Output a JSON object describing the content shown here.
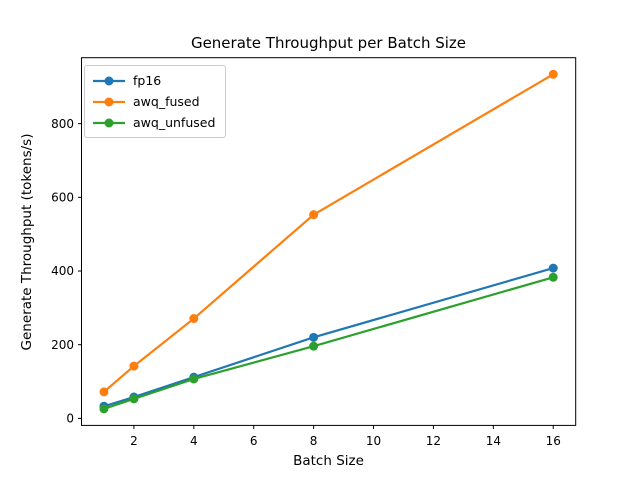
{
  "figure": {
    "background": "#ffffff"
  },
  "chart_data": {
    "type": "line",
    "title": "Generate Throughput per Batch Size",
    "xlabel": "Batch Size",
    "ylabel": "Generate Throughput (tokens/s)",
    "x": [
      1,
      2,
      4,
      8,
      16
    ],
    "series": [
      {
        "name": "fp16",
        "color": "#1f77b4",
        "values": [
          33,
          58,
          112,
          220,
          408
        ]
      },
      {
        "name": "awq_fused",
        "color": "#ff7f0e",
        "values": [
          72,
          142,
          271,
          553,
          934
        ]
      },
      {
        "name": "awq_unfused",
        "color": "#2ca02c",
        "values": [
          26,
          53,
          107,
          196,
          383
        ]
      }
    ],
    "xticks": [
      2,
      4,
      6,
      8,
      10,
      12,
      14,
      16
    ],
    "yticks": [
      0,
      200,
      400,
      600,
      800
    ],
    "xlim": [
      0.25,
      16.75
    ],
    "ylim": [
      -19,
      979
    ],
    "grid": false,
    "legend_position": "upper left",
    "marker": "circle",
    "axis_color": "#000000",
    "legend_border_color": "#cccccc"
  }
}
